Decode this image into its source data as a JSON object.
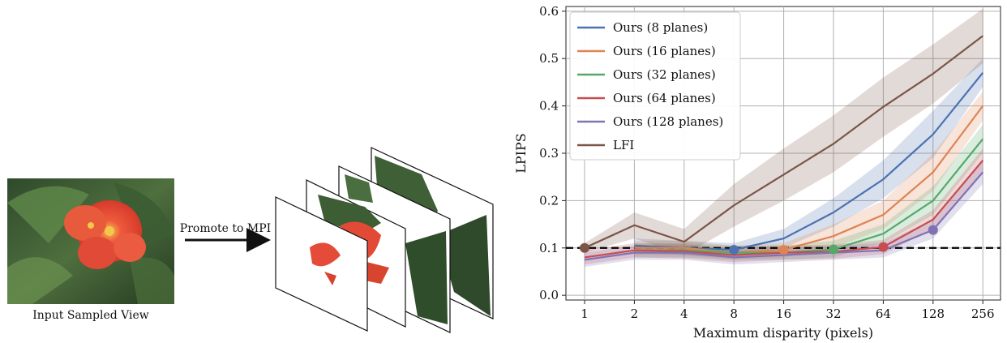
{
  "left_panel": {
    "input_caption": "Input Sampled View",
    "arrow_label": "Promote to MPI"
  },
  "chart_data": {
    "type": "line",
    "xlabel": "Maximum disparity (pixels)",
    "ylabel": "LPIPS",
    "x": [
      "1",
      "2",
      "4",
      "8",
      "16",
      "32",
      "64",
      "128",
      "256"
    ],
    "ylim": [
      -0.01,
      0.61
    ],
    "yticks": [
      "0.0",
      "0.1",
      "0.2",
      "0.3",
      "0.4",
      "0.5",
      "0.6"
    ],
    "grid": true,
    "legend_position": "upper-left",
    "reference_line": {
      "y": 0.1,
      "style": "dashed",
      "color": "#000000"
    },
    "series": [
      {
        "name": "Ours (8 planes)",
        "color": "#4c72b0",
        "values": [
          null,
          0.105,
          0.1,
          0.096,
          0.12,
          0.175,
          0.245,
          0.34,
          0.47
        ],
        "band": [
          [
            null,
            null
          ],
          [
            0.09,
            0.12
          ],
          [
            0.085,
            0.115
          ],
          [
            0.08,
            0.11
          ],
          [
            0.1,
            0.14
          ],
          [
            0.145,
            0.205
          ],
          [
            0.205,
            0.285
          ],
          [
            0.29,
            0.39
          ],
          [
            0.44,
            0.5
          ]
        ],
        "marker_index": 3
      },
      {
        "name": "Ours (16 planes)",
        "color": "#dd8452",
        "values": [
          null,
          0.1,
          0.1,
          0.09,
          0.096,
          0.125,
          0.17,
          0.26,
          0.4
        ],
        "band": [
          [
            null,
            null
          ],
          [
            0.085,
            0.115
          ],
          [
            0.085,
            0.115
          ],
          [
            0.075,
            0.105
          ],
          [
            0.08,
            0.11
          ],
          [
            0.1,
            0.15
          ],
          [
            0.14,
            0.2
          ],
          [
            0.22,
            0.3
          ],
          [
            0.37,
            0.43
          ]
        ],
        "marker_index": 4
      },
      {
        "name": "Ours (32 planes)",
        "color": "#55a868",
        "values": [
          null,
          0.095,
          0.095,
          0.09,
          0.09,
          0.097,
          0.13,
          0.2,
          0.33
        ],
        "band": [
          [
            null,
            null
          ],
          [
            0.08,
            0.11
          ],
          [
            0.08,
            0.11
          ],
          [
            0.075,
            0.105
          ],
          [
            0.075,
            0.105
          ],
          [
            0.08,
            0.115
          ],
          [
            0.11,
            0.15
          ],
          [
            0.17,
            0.23
          ],
          [
            0.3,
            0.36
          ]
        ],
        "marker_index": 5
      },
      {
        "name": "Ours (64 planes)",
        "color": "#c44e52",
        "values": [
          0.08,
          0.095,
          0.093,
          0.085,
          0.09,
          0.092,
          0.102,
          0.16,
          0.285
        ],
        "band": [
          [
            0.065,
            0.095
          ],
          [
            0.08,
            0.11
          ],
          [
            0.078,
            0.108
          ],
          [
            0.07,
            0.1
          ],
          [
            0.075,
            0.105
          ],
          [
            0.077,
            0.107
          ],
          [
            0.087,
            0.117
          ],
          [
            0.14,
            0.18
          ],
          [
            0.26,
            0.31
          ]
        ],
        "marker_index": 6
      },
      {
        "name": "Ours (128 planes)",
        "color": "#8172b3",
        "values": [
          0.075,
          0.09,
          0.09,
          0.08,
          0.085,
          0.09,
          0.095,
          0.138,
          0.26
        ],
        "band": [
          [
            0.06,
            0.09
          ],
          [
            0.075,
            0.105
          ],
          [
            0.075,
            0.105
          ],
          [
            0.065,
            0.095
          ],
          [
            0.07,
            0.1
          ],
          [
            0.075,
            0.105
          ],
          [
            0.08,
            0.11
          ],
          [
            0.12,
            0.16
          ],
          [
            0.235,
            0.285
          ]
        ],
        "marker_index": 7
      },
      {
        "name": "LFI",
        "color": "#7b5548",
        "values": [
          0.1,
          0.148,
          0.113,
          0.19,
          0.255,
          0.32,
          0.398,
          0.468,
          0.548
        ],
        "band": [
          [
            0.09,
            0.11
          ],
          [
            0.12,
            0.175
          ],
          [
            0.085,
            0.14
          ],
          [
            0.145,
            0.235
          ],
          [
            0.2,
            0.31
          ],
          [
            0.26,
            0.38
          ],
          [
            0.335,
            0.46
          ],
          [
            0.405,
            0.53
          ],
          [
            0.49,
            0.605
          ]
        ],
        "marker_index": 0
      }
    ]
  }
}
